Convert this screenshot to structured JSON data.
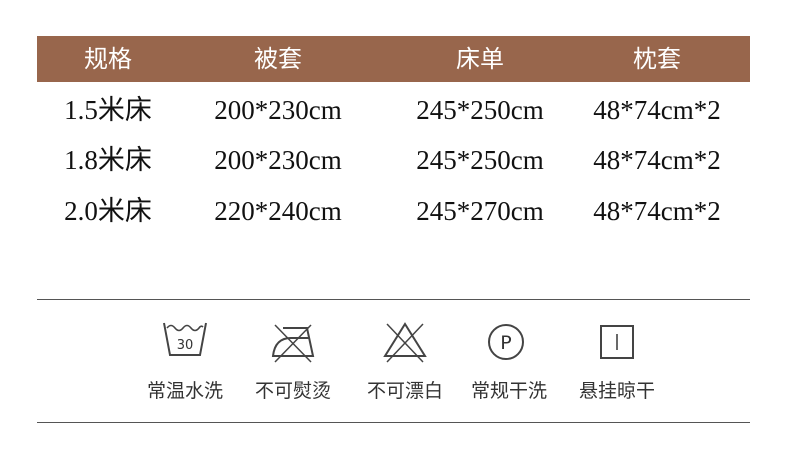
{
  "table": {
    "header_color": "#98664c",
    "headers": [
      "规格",
      "被套",
      "床单",
      "枕套"
    ],
    "rows": [
      [
        "1.5米床",
        "200*230cm",
        "245*250cm",
        "48*74cm*2"
      ],
      [
        "1.8米床",
        "200*230cm",
        "245*250cm",
        "48*74cm*2"
      ],
      [
        "2.0米床",
        "220*240cm",
        "245*270cm",
        "48*74cm*2"
      ]
    ]
  },
  "care": [
    {
      "icon": "wash-30-icon",
      "label": "常温水洗",
      "temp": "30"
    },
    {
      "icon": "no-iron-icon",
      "label": "不可熨烫"
    },
    {
      "icon": "no-bleach-icon",
      "label": "不可漂白"
    },
    {
      "icon": "dry-clean-p-icon",
      "label": "常规干洗",
      "letter": "P"
    },
    {
      "icon": "hang-dry-icon",
      "label": "悬挂晾干"
    }
  ]
}
